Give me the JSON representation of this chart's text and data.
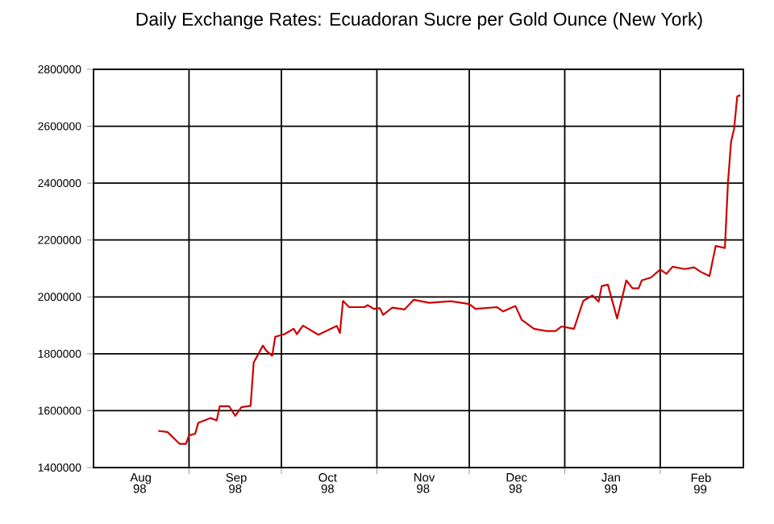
{
  "chart_data": {
    "type": "line",
    "title": "Daily Exchange Rates: Ecuadoran Sucre per Gold Ounce (New York)",
    "xlim": [
      "1998-08-01",
      "1999-02-28"
    ],
    "xticks": [
      {
        "value": "1998-09-01",
        "label": null
      },
      {
        "value": "1998-10-01",
        "label": null
      },
      {
        "value": "1998-11-01",
        "label": null
      },
      {
        "value": "1998-12-01",
        "label": null
      },
      {
        "value": "1999-01-01",
        "label": null
      },
      {
        "value": "1999-02-01",
        "label": null
      },
      {
        "value": "1998-08-16",
        "label": "Aug 98"
      },
      {
        "value": "1998-09-16",
        "label": "Sep 98"
      },
      {
        "value": "1998-10-16",
        "label": "Oct 98"
      },
      {
        "value": "1998-11-16",
        "label": "Nov 98"
      },
      {
        "value": "1998-12-16",
        "label": "Dec 98"
      },
      {
        "value": "1999-01-16",
        "label": "Jan 99"
      },
      {
        "value": "1999-02-14",
        "label": "Feb 99"
      }
    ],
    "ylim": [
      1400000,
      2800000
    ],
    "yticks": [
      1400000,
      1600000,
      1800000,
      2000000,
      2200000,
      2400000,
      2600000,
      2800000
    ],
    "grid": true,
    "series": [
      {
        "color": "#cc0000",
        "x": [
          "1998-08-22",
          "1998-08-25",
          "1998-08-29",
          "1998-08-31",
          "1998-09-01",
          "1998-09-03",
          "1998-09-04",
          "1998-09-08",
          "1998-09-10",
          "1998-09-11",
          "1998-09-14",
          "1998-09-16",
          "1998-09-18",
          "1998-09-21",
          "1998-09-22",
          "1998-09-25",
          "1998-09-26",
          "1998-09-28",
          "1998-09-29",
          "1998-10-02",
          "1998-10-05",
          "1998-10-06",
          "1998-10-08",
          "1998-10-13",
          "1998-10-19",
          "1998-10-20",
          "1998-10-21",
          "1998-10-23",
          "1998-10-28",
          "1998-10-29",
          "1998-10-31",
          "1998-11-02",
          "1998-11-03",
          "1998-11-06",
          "1998-11-10",
          "1998-11-13",
          "1998-11-18",
          "1998-11-25",
          "1998-12-01",
          "1998-12-03",
          "1998-12-10",
          "1998-12-12",
          "1998-12-16",
          "1998-12-18",
          "1998-12-22",
          "1998-12-26",
          "1998-12-29",
          "1998-12-31",
          "1999-01-04",
          "1999-01-07",
          "1999-01-10",
          "1999-01-12",
          "1999-01-13",
          "1999-01-15",
          "1999-01-18",
          "1999-01-21",
          "1999-01-23",
          "1999-01-25",
          "1999-01-26",
          "1999-01-29",
          "1999-02-01",
          "1999-02-03",
          "1999-02-05",
          "1999-02-09",
          "1999-02-12",
          "1999-02-14",
          "1999-02-17",
          "1999-02-19",
          "1999-02-22",
          "1999-02-23",
          "1999-02-24",
          "1999-02-25",
          "1999-02-26",
          "1999-02-27"
        ],
        "values": [
          1529000,
          1525000,
          1483000,
          1483000,
          1513000,
          1519000,
          1557000,
          1574000,
          1566000,
          1616000,
          1616000,
          1582000,
          1612000,
          1617000,
          1769000,
          1829000,
          1812000,
          1793000,
          1860000,
          1869000,
          1888000,
          1869000,
          1899000,
          1867000,
          1898000,
          1873000,
          1986000,
          1964000,
          1964000,
          1971000,
          1958000,
          1960000,
          1937000,
          1962000,
          1956000,
          1990000,
          1979000,
          1985000,
          1975000,
          1958000,
          1964000,
          1949000,
          1968000,
          1920000,
          1888000,
          1880000,
          1880000,
          1896000,
          1888000,
          1986000,
          2005000,
          1983000,
          2038000,
          2043000,
          1924000,
          2058000,
          2030000,
          2030000,
          2058000,
          2068000,
          2096000,
          2081000,
          2106000,
          2098000,
          2104000,
          2089000,
          2073000,
          2179000,
          2172000,
          2403000,
          2545000,
          2592000,
          2705000,
          2709000
        ]
      }
    ]
  }
}
